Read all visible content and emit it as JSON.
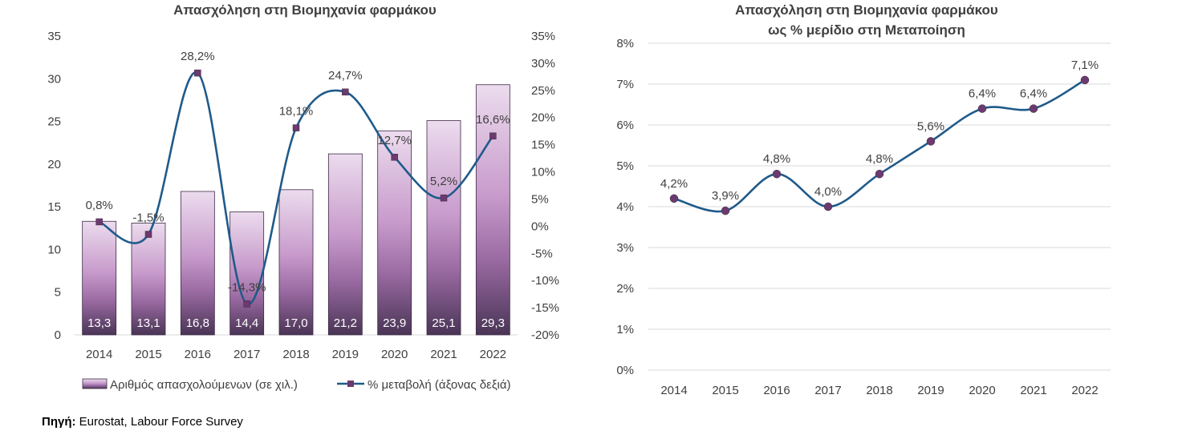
{
  "chart_data": [
    {
      "type": "bar+line",
      "title": "Απασχόληση στη Βιομηχανία φαρμάκου",
      "categories": [
        "2014",
        "2015",
        "2016",
        "2017",
        "2018",
        "2019",
        "2020",
        "2021",
        "2022"
      ],
      "series": [
        {
          "name": "Αριθμός απασχολούμενων (σε χιλ.)",
          "type": "bar",
          "axis": "left",
          "values": [
            13.3,
            13.1,
            16.8,
            14.4,
            17.0,
            21.2,
            23.9,
            25.1,
            29.3
          ],
          "labels": [
            "13,3",
            "13,1",
            "16,8",
            "14,4",
            "17,0",
            "21,2",
            "23,9",
            "25,1",
            "29,3"
          ]
        },
        {
          "name": "% μεταβολή (άξονας δεξιά)",
          "type": "line",
          "axis": "right",
          "values": [
            0.8,
            -1.5,
            28.2,
            -14.3,
            18.1,
            24.7,
            12.7,
            5.2,
            16.6
          ],
          "labels": [
            "0,8%",
            "-1,5%",
            "28,2%",
            "-14,3%",
            "18,1%",
            "24,7%",
            "12,7%",
            "5,2%",
            "16,6%"
          ]
        }
      ],
      "ylim": [
        0,
        35
      ],
      "y_ticks": [
        "0",
        "5",
        "10",
        "15",
        "20",
        "25",
        "30",
        "35"
      ],
      "y2lim": [
        -20,
        35
      ],
      "y2_ticks": [
        "-20%",
        "-15%",
        "-10%",
        "-5%",
        "0%",
        "5%",
        "10%",
        "15%",
        "20%",
        "25%",
        "30%",
        "35%"
      ],
      "legend": "bottom",
      "grid": false,
      "colors": {
        "bar_top": "#e8d6ea",
        "bar_mid": "#b07bb6",
        "bar_bottom": "#5c3d66",
        "line": "#1f5a8a",
        "marker": "#6b3a6e"
      }
    },
    {
      "type": "line",
      "title": "Απασχόληση στη Βιομηχανία φαρμάκου",
      "subtitle": "ως % μερίδιο στη Μεταποίηση",
      "categories": [
        "2014",
        "2015",
        "2016",
        "2017",
        "2018",
        "2019",
        "2020",
        "2021",
        "2022"
      ],
      "series": [
        {
          "values": [
            4.2,
            3.9,
            4.8,
            4.0,
            4.8,
            5.6,
            6.4,
            6.4,
            7.1
          ],
          "labels": [
            "4,2%",
            "3,9%",
            "4,8%",
            "4,0%",
            "4,8%",
            "5,6%",
            "6,4%",
            "6,4%",
            "7,1%"
          ]
        }
      ],
      "ylim": [
        0,
        8
      ],
      "y_ticks": [
        "0%",
        "1%",
        "2%",
        "3%",
        "4%",
        "5%",
        "6%",
        "7%",
        "8%"
      ],
      "grid": true,
      "colors": {
        "line": "#1f5a8a",
        "marker": "#6b3a6e",
        "grid": "#d9d9d9"
      }
    }
  ],
  "source": {
    "label": "Πηγή:",
    "text": " Eurostat, Labour Force Survey"
  }
}
